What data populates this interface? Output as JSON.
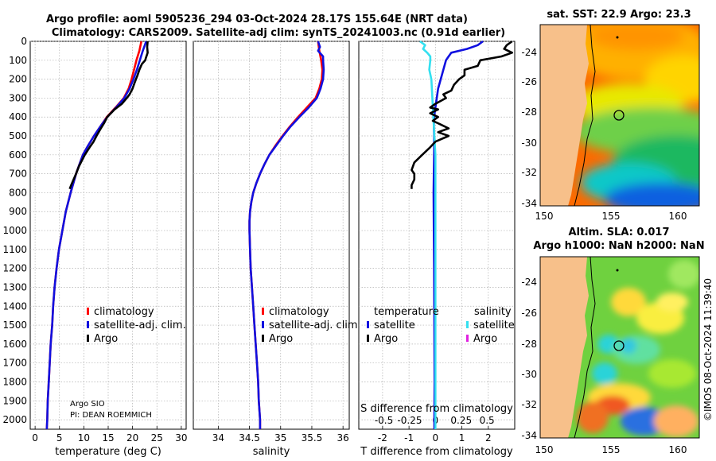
{
  "header": {
    "title_line1": "Argo profile: aoml 5905236_294 03-Oct-2024 28.17S 155.64E (NRT data)",
    "title_line2": "Climatology: CARS2009. Satellite-adj clim: synTS_20241003.nc (0.91d earlier)"
  },
  "depth_ticks": [
    "0",
    "100",
    "200",
    "300",
    "400",
    "500",
    "600",
    "700",
    "800",
    "900",
    "1000",
    "1100",
    "1200",
    "1300",
    "1400",
    "1500",
    "1600",
    "1700",
    "1800",
    "1900",
    "2000"
  ],
  "credit": {
    "line1": "Argo SIO",
    "line2": "PI: DEAN ROEMMICH"
  },
  "timestamp": "©IMOS 08-Oct-2024 11:39:40",
  "colors": {
    "climatology": "#ff0000",
    "satellite": "#1010e0",
    "argo": "#000000",
    "sat_salinity": "#33e0f0",
    "argo_salinity": "#e020e0"
  },
  "chart_data": [
    {
      "type": "line",
      "name": "temperature",
      "xlabel": "temperature (deg C)",
      "ylabel": "depth (m)",
      "xlim": [
        -1,
        31
      ],
      "ylim": [
        2050,
        0
      ],
      "x_ticks": [
        "0",
        "5",
        "10",
        "15",
        "20",
        "25",
        "30"
      ],
      "x_tick_values": [
        0,
        5,
        10,
        15,
        20,
        25,
        30
      ],
      "legend": [
        "climatology",
        "satellite-adj. clim.",
        "Argo"
      ],
      "series": [
        {
          "name": "climatology",
          "color": "#ff0000",
          "depth": [
            0,
            50,
            100,
            150,
            200,
            250,
            300,
            350,
            400,
            450,
            500,
            550,
            600,
            650,
            700,
            800,
            900,
            1000,
            1100,
            1200,
            1300,
            1400,
            1500,
            1600,
            1700,
            1800,
            1900,
            2000,
            2050
          ],
          "values": [
            21.8,
            21.4,
            20.8,
            20.3,
            19.8,
            19.2,
            18.2,
            16.5,
            14.7,
            13.4,
            12.1,
            10.9,
            9.8,
            9.1,
            8.4,
            7.3,
            6.3,
            5.6,
            4.9,
            4.4,
            4.0,
            3.7,
            3.5,
            3.2,
            3.0,
            2.8,
            2.6,
            2.5,
            2.4
          ]
        },
        {
          "name": "satellite-adj. clim.",
          "color": "#1010e0",
          "depth": [
            0,
            50,
            100,
            150,
            200,
            250,
            300,
            350,
            400,
            450,
            500,
            550,
            600,
            650,
            700,
            800,
            900,
            1000,
            1100,
            1200,
            1300,
            1400,
            1500,
            1600,
            1700,
            1800,
            1900,
            2000,
            2050
          ],
          "values": [
            22.8,
            22.1,
            21.5,
            20.9,
            20.2,
            19.4,
            18.3,
            16.6,
            14.8,
            13.4,
            12.1,
            10.9,
            9.8,
            9.1,
            8.4,
            7.3,
            6.3,
            5.6,
            4.9,
            4.4,
            4.0,
            3.7,
            3.5,
            3.2,
            3.0,
            2.8,
            2.6,
            2.5,
            2.4
          ]
        },
        {
          "name": "Argo",
          "color": "#000000",
          "depth": [
            0,
            30,
            60,
            90,
            100,
            120,
            150,
            180,
            200,
            220,
            250,
            280,
            300,
            330,
            360,
            400,
            430,
            460,
            500,
            530,
            560,
            600,
            630,
            660,
            700,
            730,
            760,
            780
          ],
          "values": [
            23.1,
            23.0,
            23.1,
            22.7,
            22.6,
            21.9,
            21.4,
            21.0,
            20.7,
            20.4,
            20.0,
            19.4,
            18.8,
            17.8,
            16.3,
            14.8,
            14.2,
            13.5,
            12.6,
            12.0,
            11.2,
            10.2,
            9.6,
            9.0,
            8.4,
            7.9,
            7.4,
            7.1
          ]
        }
      ]
    },
    {
      "type": "line",
      "name": "salinity",
      "xlabel": "salinity",
      "xlim": [
        33.6,
        36.1
      ],
      "ylim": [
        2050,
        0
      ],
      "x_ticks": [
        "34",
        "34.5",
        "35",
        "35.5",
        "36"
      ],
      "x_tick_values": [
        34,
        34.5,
        35,
        35.5,
        36
      ],
      "legend": [
        "climatology",
        "satellite-adj. clim.",
        "Argo"
      ],
      "series": [
        {
          "name": "climatology",
          "color": "#ff0000",
          "depth": [
            0,
            50,
            100,
            150,
            200,
            250,
            300,
            350,
            400,
            450,
            500,
            550,
            600,
            650,
            700,
            750,
            800,
            850,
            900,
            950,
            1000,
            1100,
            1200,
            1300,
            1400,
            1500,
            1600,
            1700,
            1800,
            1900,
            2000,
            2050
          ],
          "values": [
            35.6,
            35.62,
            35.65,
            35.67,
            35.66,
            35.62,
            35.56,
            35.42,
            35.28,
            35.15,
            35.03,
            34.92,
            34.82,
            34.74,
            34.67,
            34.61,
            34.56,
            34.53,
            34.51,
            34.5,
            34.5,
            34.51,
            34.52,
            34.54,
            34.56,
            34.58,
            34.6,
            34.62,
            34.64,
            34.65,
            34.67,
            34.67
          ]
        },
        {
          "name": "satellite-adj. clim.",
          "color": "#1010e0",
          "depth": [
            0,
            30,
            50,
            80,
            100,
            150,
            200,
            250,
            300,
            350,
            400,
            450,
            500,
            550,
            600,
            650,
            700,
            750,
            800,
            850,
            900,
            950,
            1000,
            1100,
            1200,
            1300,
            1400,
            1500,
            1600,
            1700,
            1800,
            1900,
            2000,
            2050
          ],
          "values": [
            35.6,
            35.63,
            35.6,
            35.68,
            35.68,
            35.69,
            35.68,
            35.64,
            35.58,
            35.45,
            35.3,
            35.16,
            35.04,
            34.93,
            34.82,
            34.74,
            34.67,
            34.61,
            34.56,
            34.53,
            34.51,
            34.5,
            34.5,
            34.51,
            34.52,
            34.54,
            34.56,
            34.58,
            34.6,
            34.62,
            34.64,
            34.65,
            34.67,
            34.67
          ]
        }
      ]
    },
    {
      "type": "line",
      "name": "difference",
      "xlabel": "T difference from climatology",
      "xlabel_s": "S difference from climatology",
      "xlim": [
        -2.9,
        3.0
      ],
      "ylim": [
        2050,
        0
      ],
      "x_ticks": [
        "-2",
        "-1",
        "0",
        "1",
        "2"
      ],
      "x_tick_values": [
        -2,
        -1,
        0,
        1,
        2
      ],
      "s_ticks": [
        "-0.5",
        "-0.25",
        "0",
        "0.25",
        "0.5"
      ],
      "s_tick_values": [
        -0.5,
        -0.25,
        0,
        0.25,
        0.5
      ],
      "legend_left_title": "temperature",
      "legend_right_title": "salinity",
      "legend_left": [
        "satellite",
        "Argo"
      ],
      "legend_right": [
        "satellite",
        "Argo"
      ],
      "series": [
        {
          "name": "satellite T",
          "color": "#1010e0",
          "depth": [
            0,
            20,
            40,
            60,
            80,
            100,
            150,
            200,
            250,
            300,
            350,
            400,
            450,
            500,
            600,
            700,
            800,
            1000,
            1200,
            1500,
            1800,
            2000,
            2050
          ],
          "values": [
            1.8,
            1.6,
            1.2,
            0.6,
            0.5,
            0.4,
            0.3,
            0.2,
            0.1,
            0.05,
            0.0,
            -0.05,
            -0.06,
            -0.05,
            -0.05,
            -0.06,
            -0.07,
            -0.06,
            -0.05,
            -0.04,
            -0.03,
            -0.04,
            -0.04
          ]
        },
        {
          "name": "satellite S",
          "color": "#33e0f0",
          "depth": [
            0,
            20,
            40,
            60,
            80,
            100,
            150,
            200,
            300,
            400,
            500,
            600,
            700,
            800,
            1000,
            1200,
            1500,
            1800,
            2000,
            2050
          ],
          "values": [
            -0.15,
            -0.1,
            -0.12,
            -0.08,
            -0.05,
            -0.05,
            -0.06,
            -0.04,
            -0.03,
            -0.02,
            -0.01,
            0.0,
            0.0,
            0.0,
            0.0,
            0.0,
            0.0,
            0.0,
            0.0,
            0.0
          ]
        },
        {
          "name": "Argo T",
          "color": "#000000",
          "depth": [
            0,
            20,
            40,
            60,
            80,
            100,
            130,
            150,
            180,
            200,
            230,
            260,
            280,
            300,
            330,
            350,
            360,
            380,
            400,
            420,
            440,
            460,
            480,
            500,
            530,
            560,
            600,
            640,
            680,
            700,
            730,
            760,
            780
          ],
          "values": [
            2.9,
            2.7,
            2.6,
            2.9,
            2.5,
            1.7,
            1.6,
            1.1,
            1.1,
            0.9,
            0.7,
            0.6,
            0.3,
            0.4,
            0.0,
            -0.2,
            0.1,
            -0.2,
            0.1,
            -0.1,
            0.2,
            0.5,
            0.1,
            0.5,
            0.0,
            -0.2,
            -0.5,
            -0.8,
            -0.9,
            -0.8,
            -0.8,
            -0.9,
            -0.9
          ]
        }
      ]
    }
  ],
  "maps": {
    "sst": {
      "title": "sat. SST: 22.9 Argo: 23.3",
      "y_ticks": [
        "-24",
        "-26",
        "-28",
        "-30",
        "-32",
        "-34"
      ],
      "x_ticks": [
        "150",
        "155",
        "160"
      ]
    },
    "sla": {
      "title_line1": "Altim. SLA: 0.017",
      "title_line2": "Argo h1000: NaN h2000: NaN",
      "y_ticks": [
        "-24",
        "-26",
        "-28",
        "-30",
        "-32",
        "-34"
      ],
      "x_ticks": [
        "150",
        "155",
        "160"
      ]
    }
  }
}
